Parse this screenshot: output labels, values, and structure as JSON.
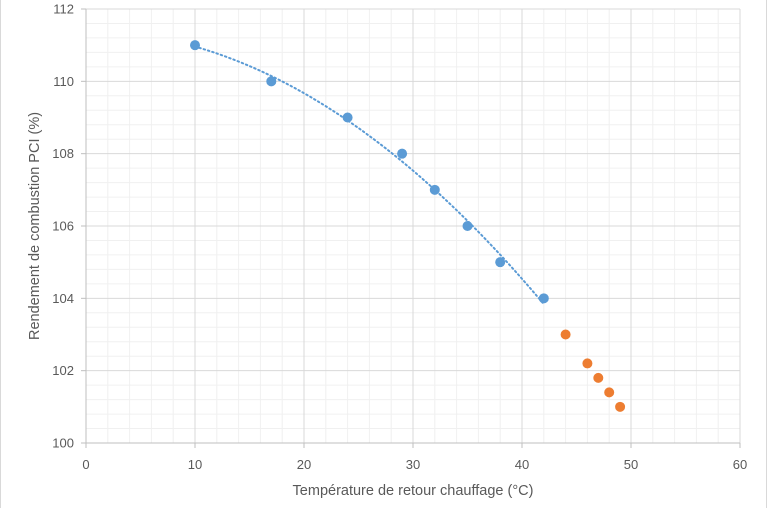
{
  "chart_data": {
    "type": "scatter",
    "xlabel": "Température de retour chauffage (°C)",
    "ylabel": "Rendement de combustion PCI  (%)",
    "xlim": [
      0,
      60
    ],
    "ylim": [
      100,
      112
    ],
    "x_ticks": [
      "0",
      "10",
      "20",
      "30",
      "40",
      "50",
      "60"
    ],
    "y_ticks": [
      "100",
      "102",
      "104",
      "106",
      "108",
      "110",
      "112"
    ],
    "grid": true,
    "minor_grid": true,
    "legend": "none",
    "series": [
      {
        "color": "#5b9bd5",
        "points": [
          {
            "x": 10,
            "y": 111
          },
          {
            "x": 17,
            "y": 110
          },
          {
            "x": 24,
            "y": 109
          },
          {
            "x": 29,
            "y": 108
          },
          {
            "x": 32,
            "y": 107
          },
          {
            "x": 35,
            "y": 106
          },
          {
            "x": 38,
            "y": 105
          },
          {
            "x": 42,
            "y": 104
          }
        ],
        "trendline": {
          "type": "polynomial",
          "order": 2,
          "style": "dotted",
          "color": "#5b9bd5"
        }
      },
      {
        "color": "#ed7d31",
        "points": [
          {
            "x": 44,
            "y": 103
          },
          {
            "x": 46,
            "y": 102.2
          },
          {
            "x": 47,
            "y": 101.8
          },
          {
            "x": 48,
            "y": 101.4
          },
          {
            "x": 49,
            "y": 101
          }
        ]
      }
    ]
  }
}
